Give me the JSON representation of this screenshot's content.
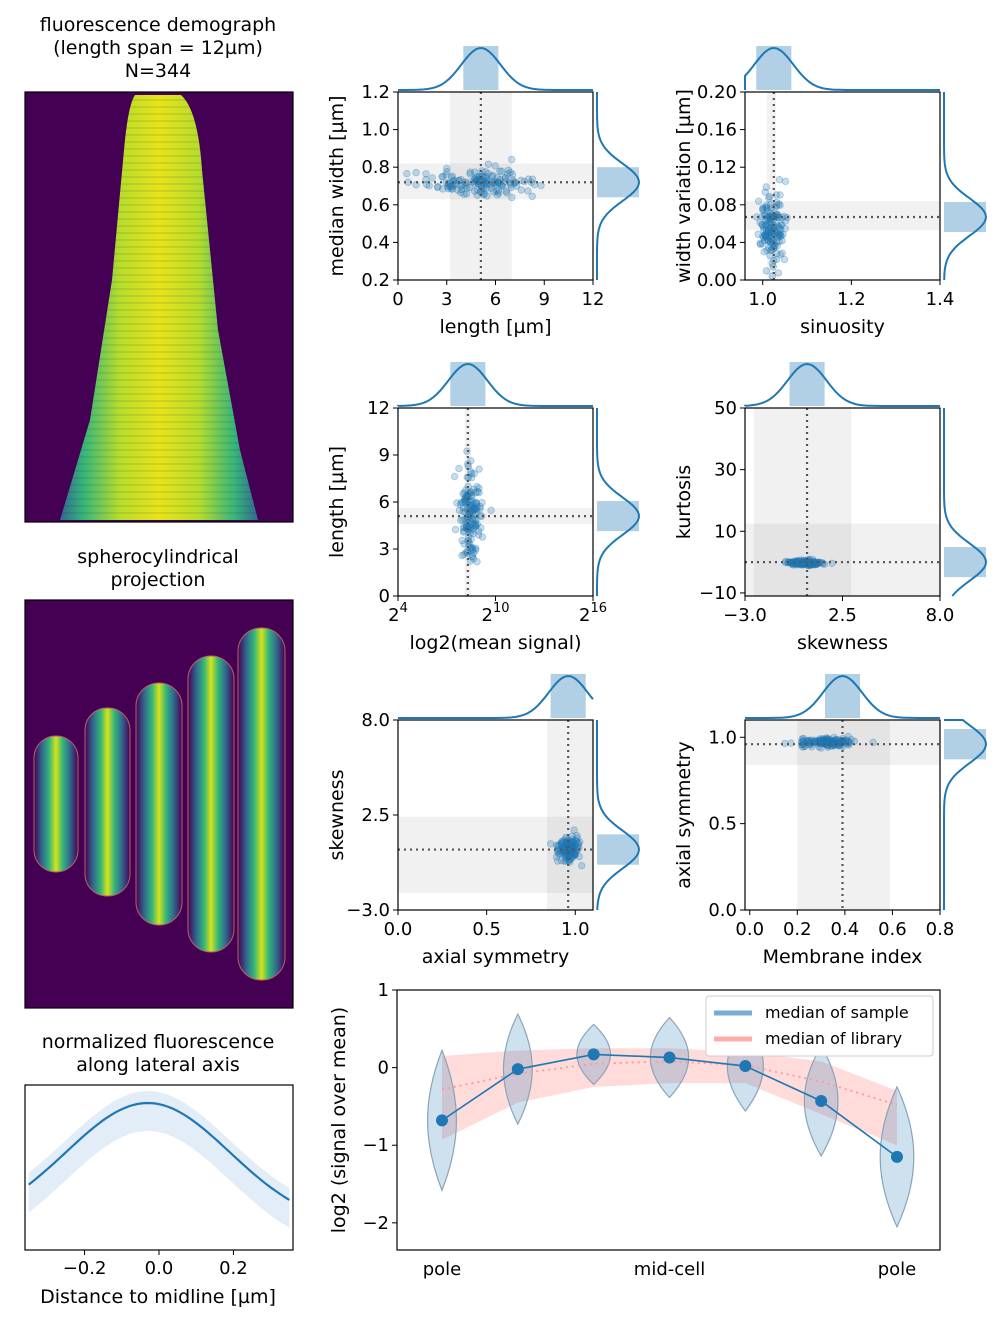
{
  "colors": {
    "series": "#1f77b4",
    "library": "#ff9896",
    "frame": "#000000",
    "bg_dark": "#440154",
    "band": "#d9d9d9"
  },
  "demograph": {
    "title_lines": [
      "fluorescence demograph",
      "(length span = 12µm)",
      "N=344"
    ]
  },
  "projection": {
    "title_lines": [
      "spherocylindrical",
      "projection"
    ],
    "cells": 5
  },
  "lateral": {
    "title_lines": [
      "normalized fluorescence",
      "along lateral axis"
    ],
    "xlabel": "Distance to midline [µm]",
    "ticks": [
      "−0.2",
      "0.0",
      "0.2"
    ],
    "tick_values": [
      -0.2,
      0.0,
      0.2
    ],
    "xlim": [
      -0.36,
      0.36
    ]
  },
  "chart_data": [
    {
      "id": "length_width",
      "type": "scatter",
      "xlabel": "length [µm]",
      "ylabel": "median width [µm]",
      "xlim": [
        0,
        12
      ],
      "ylim": [
        0.2,
        1.2
      ],
      "xticks": [
        "0",
        "3",
        "6",
        "9",
        "12"
      ],
      "yticks": [
        "0.2",
        "0.4",
        "0.6",
        "0.8",
        "1.0",
        "1.2"
      ],
      "xticks_v": [
        0,
        3,
        6,
        9,
        12
      ],
      "yticks_v": [
        0.2,
        0.4,
        0.6,
        0.8,
        1.0,
        1.2
      ],
      "median_x": 5.1,
      "median_y": 0.72,
      "band_x": [
        3.2,
        7.0
      ],
      "band_y": [
        0.63,
        0.82
      ]
    },
    {
      "id": "sinuosity_widthvar",
      "type": "scatter",
      "xlabel": "sinuosity",
      "ylabel": "width variation [µm]",
      "xlim": [
        0.96,
        1.4
      ],
      "ylim": [
        0,
        0.2
      ],
      "xticks": [
        "1.0",
        "1.2",
        "1.4"
      ],
      "yticks": [
        "0.00",
        "0.04",
        "0.08",
        "0.12",
        "0.16",
        "0.20"
      ],
      "xticks_v": [
        1.0,
        1.2,
        1.4
      ],
      "yticks_v": [
        0,
        0.04,
        0.08,
        0.12,
        0.16,
        0.2
      ],
      "median_x": 1.025,
      "median_y": 0.067,
      "band_x": [
        1.01,
        1.03
      ],
      "band_y": [
        0.053,
        0.084
      ]
    },
    {
      "id": "signal_length",
      "type": "scatter",
      "xlabel": "log2(mean signal)",
      "ylabel": "length [µm]",
      "xlim": [
        4,
        16
      ],
      "ylim": [
        0,
        12
      ],
      "xticks": [
        "2",
        "2",
        "2"
      ],
      "xtick_exps": [
        "4",
        "10",
        "16"
      ],
      "yticks": [
        "0",
        "3",
        "6",
        "9",
        "12"
      ],
      "xticks_v": [
        4,
        10,
        16
      ],
      "yticks_v": [
        0,
        3,
        6,
        9,
        12
      ],
      "median_x": 8.3,
      "median_y": 5.1,
      "band_x": [
        8.1,
        8.5
      ],
      "band_y": [
        4.6,
        5.6
      ]
    },
    {
      "id": "skewness_kurtosis",
      "type": "scatter",
      "xlabel": "skewness",
      "ylabel": "kurtosis",
      "xlim": [
        -3,
        8
      ],
      "ylim": [
        -11,
        50
      ],
      "xticks": [
        "−3.0",
        "2.5",
        "8.0"
      ],
      "yticks": [
        "−10",
        "10",
        "30",
        "50"
      ],
      "xticks_v": [
        -3,
        2.5,
        8
      ],
      "yticks_v": [
        -10,
        10,
        30,
        50
      ],
      "median_x": 0.5,
      "median_y": 0,
      "band_x": [
        -2.5,
        3.0
      ],
      "band_y": [
        -11,
        12.5
      ]
    },
    {
      "id": "axial_skewness",
      "type": "scatter",
      "xlabel": "axial symmetry",
      "ylabel": "skewness",
      "xlim": [
        0,
        1.1
      ],
      "ylim": [
        -3,
        8
      ],
      "xticks": [
        "0.0",
        "0.5",
        "1.0"
      ],
      "yticks": [
        "−3.0",
        "2.5",
        "8.0"
      ],
      "xticks_v": [
        0,
        0.5,
        1.0
      ],
      "yticks_v": [
        -3,
        2.5,
        8
      ],
      "median_x": 0.96,
      "median_y": 0.5,
      "band_x": [
        0.84,
        1.1
      ],
      "band_y": [
        -2.0,
        2.4
      ]
    },
    {
      "id": "membrane_axial",
      "type": "scatter",
      "xlabel": "Membrane index",
      "ylabel": "axial symmetry",
      "xlim": [
        -0.02,
        0.8
      ],
      "ylim": [
        0,
        1.1
      ],
      "xticks": [
        "0.0",
        "0.2",
        "0.4",
        "0.6",
        "0.8"
      ],
      "yticks": [
        "0.0",
        "0.5",
        "1.0"
      ],
      "xticks_v": [
        0,
        0.2,
        0.4,
        0.6,
        0.8
      ],
      "yticks_v": [
        0,
        0.5,
        1.0
      ],
      "median_x": 0.39,
      "median_y": 0.96,
      "band_x": [
        0.2,
        0.59
      ],
      "band_y": [
        0.84,
        1.1
      ]
    },
    {
      "id": "profile",
      "type": "line",
      "ylabel": "log2 (signal over mean)",
      "xticklabels": [
        "pole",
        "mid-cell",
        "pole"
      ],
      "ylim": [
        -2.35,
        1.0
      ],
      "yticks": [
        "−2",
        "−1",
        "0",
        "1"
      ],
      "yticks_v": [
        -2,
        -1,
        0,
        1
      ],
      "series": [
        {
          "name": "median of sample",
          "values": [
            -0.68,
            -0.02,
            0.17,
            0.13,
            0.02,
            -0.43,
            -1.15
          ]
        },
        {
          "name": "median of library",
          "values": [
            -0.28,
            -0.08,
            0.05,
            0.08,
            0.03,
            -0.18,
            -0.48
          ],
          "band_lo": [
            -0.93,
            -0.45,
            -0.25,
            -0.2,
            -0.2,
            -0.6,
            -1.0
          ],
          "band_hi": [
            0.15,
            0.22,
            0.25,
            0.25,
            0.2,
            0.08,
            -0.3
          ]
        }
      ]
    }
  ]
}
